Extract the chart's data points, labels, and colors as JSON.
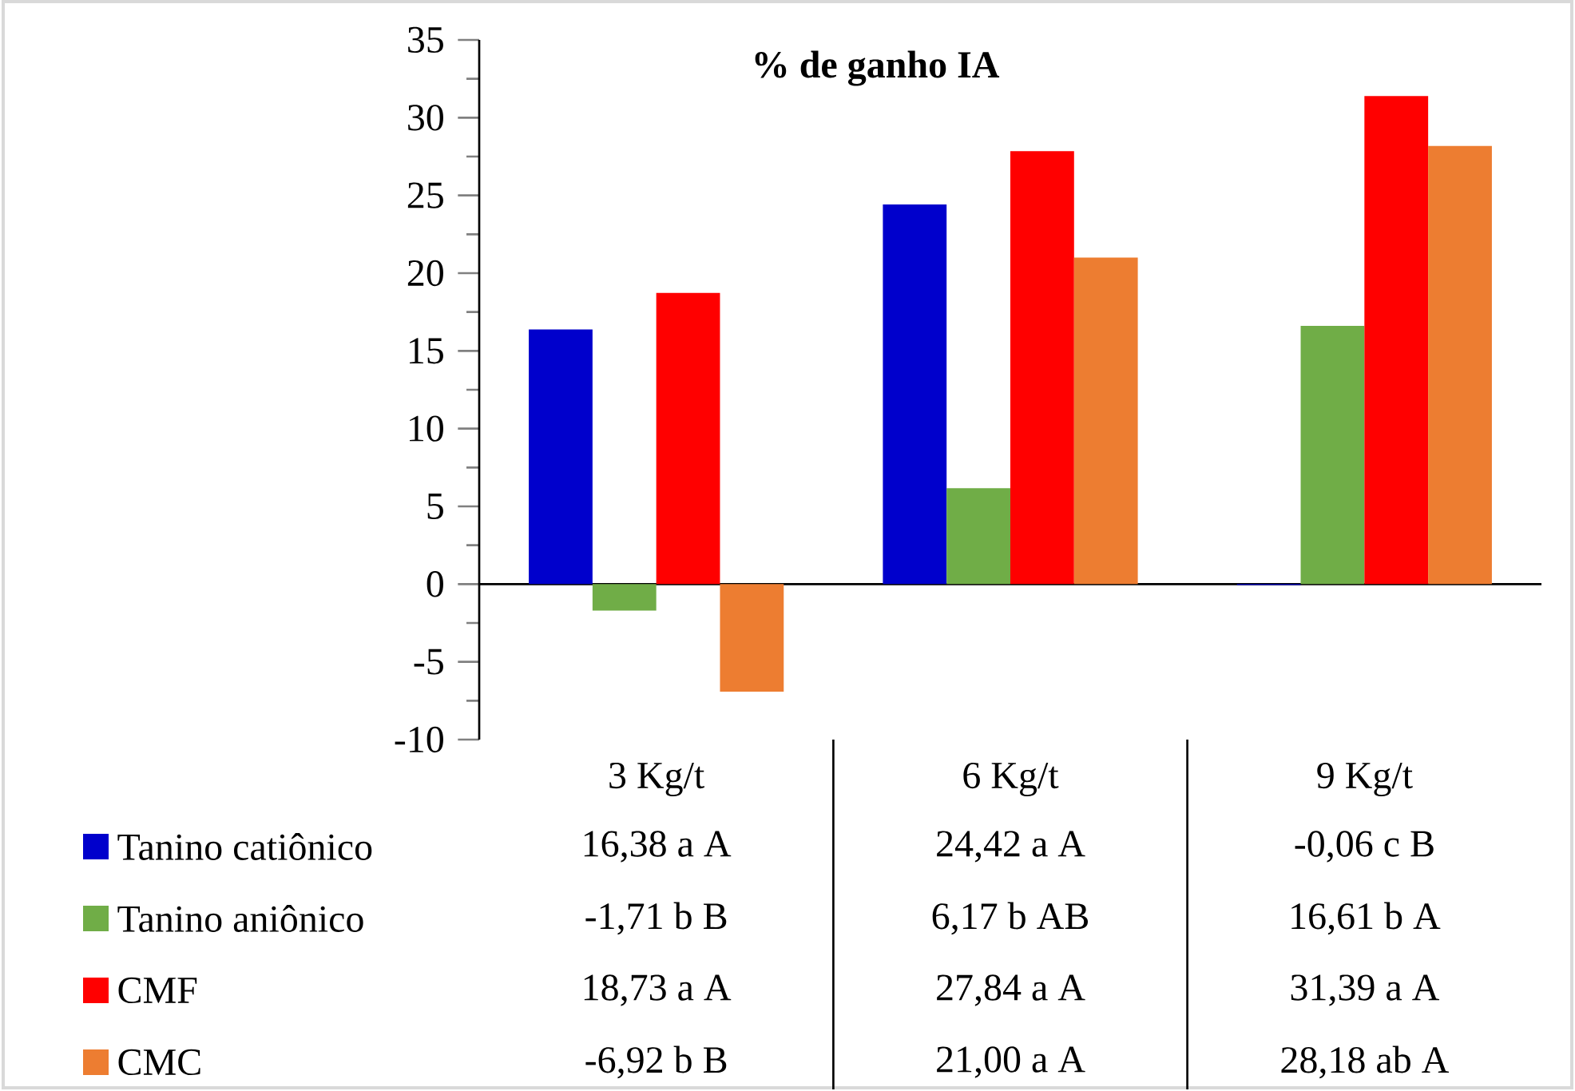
{
  "chart_data": {
    "type": "bar",
    "title": "% de ganho IA",
    "categories": [
      "3 Kg/t",
      "6 Kg/t",
      "9 Kg/t"
    ],
    "series": [
      {
        "name": "Tanino catiônico",
        "color": "#0000cc",
        "values": [
          16.38,
          24.42,
          -0.06
        ],
        "value_labels": [
          "16,38 a A",
          "24,42 a A",
          "-0,06 c B"
        ]
      },
      {
        "name": "Tanino aniônico",
        "color": "#70ad47",
        "values": [
          -1.71,
          6.17,
          16.61
        ],
        "value_labels": [
          "-1,71 b B",
          "6,17 b AB",
          "16,61 b A"
        ]
      },
      {
        "name": "CMF",
        "color": "#ff0000",
        "values": [
          18.73,
          27.84,
          31.39
        ],
        "value_labels": [
          "18,73 a A",
          "27,84 a A",
          "31,39 a A"
        ]
      },
      {
        "name": "CMC",
        "color": "#ed7d31",
        "values": [
          -6.92,
          21.0,
          28.18
        ],
        "value_labels": [
          "-6,92 b B",
          "21,00 a A",
          "28,18 ab A"
        ]
      }
    ],
    "ylim": [
      -10,
      35
    ],
    "yticks": [
      -10,
      -5,
      0,
      5,
      10,
      15,
      20,
      25,
      30,
      35
    ],
    "legend": "bottom"
  }
}
